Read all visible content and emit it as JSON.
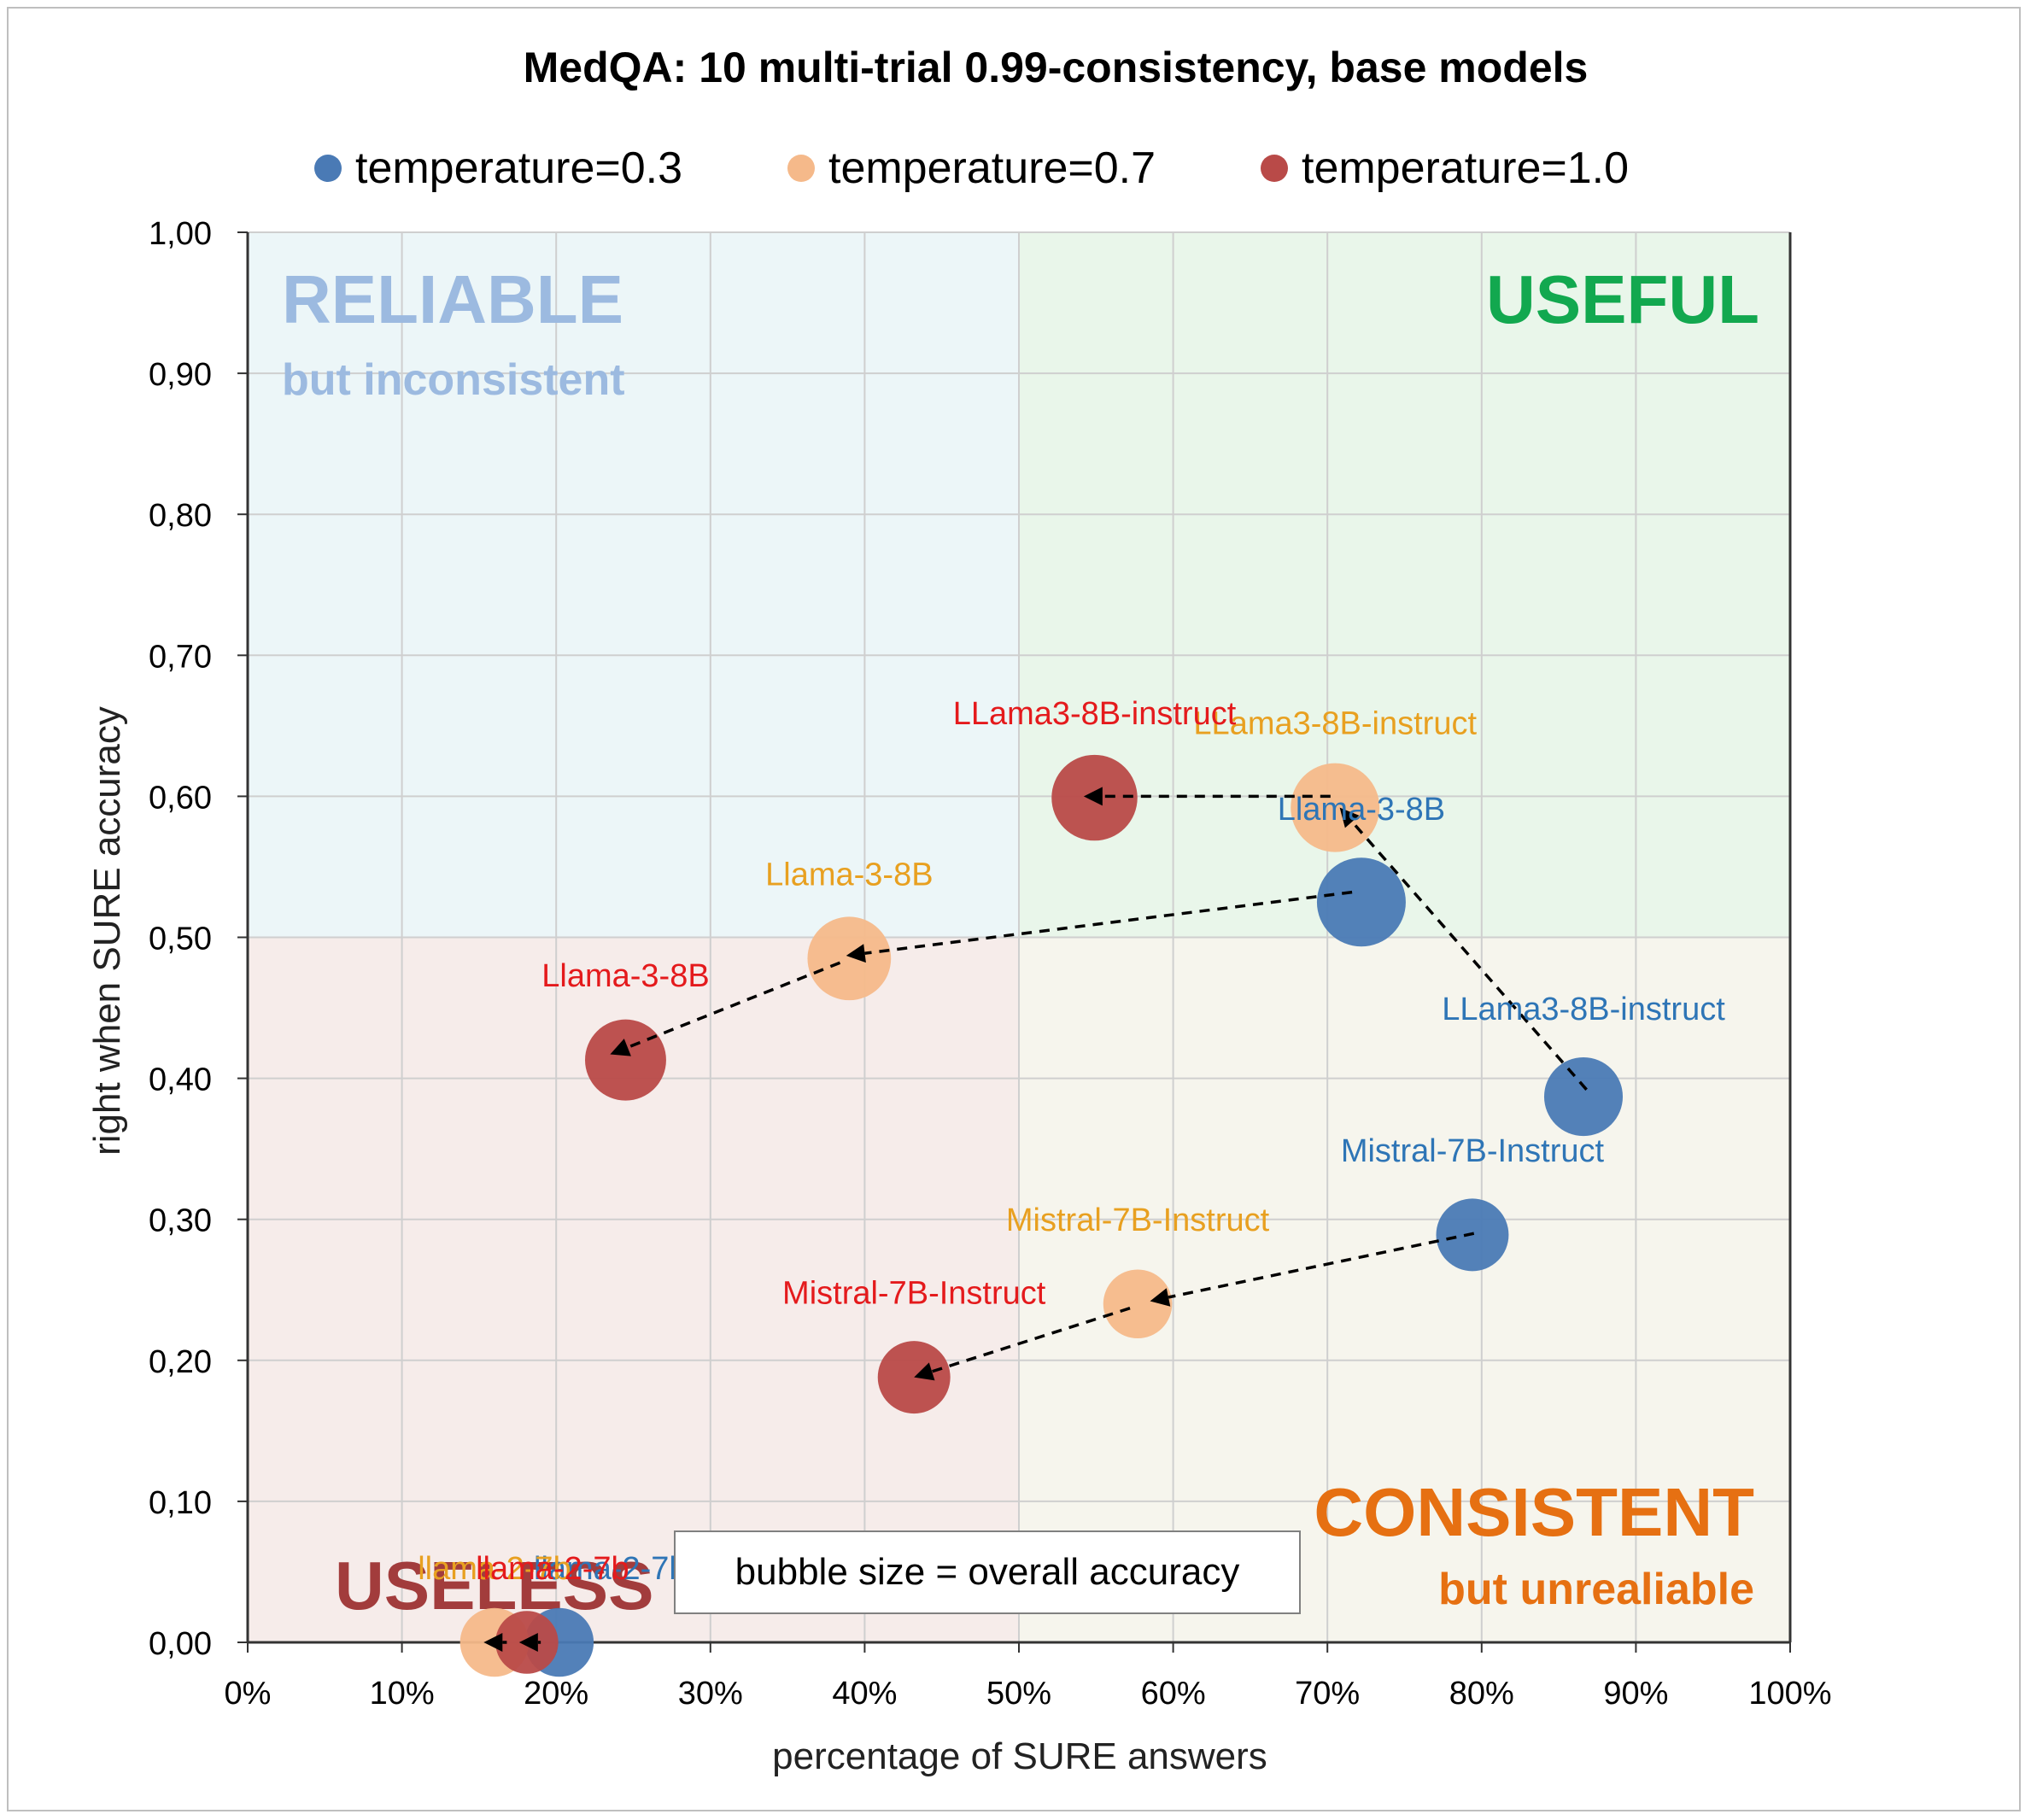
{
  "chart_data": {
    "type": "scatter",
    "title": "MedQA: 10 multi-trial 0.99-consistency, base models",
    "xlabel": "percentage of SURE answers",
    "ylabel": "right when SURE accuracy",
    "xlim": [
      0,
      1.0
    ],
    "ylim": [
      0,
      1.0
    ],
    "x_ticks": [
      0,
      0.1,
      0.2,
      0.3,
      0.4,
      0.5,
      0.6,
      0.7,
      0.8,
      0.9,
      1.0
    ],
    "y_ticks": [
      0,
      0.1,
      0.2,
      0.3,
      0.4,
      0.5,
      0.6,
      0.7,
      0.8,
      0.9,
      1.0
    ],
    "x_tick_labels": [
      "0%",
      "10%",
      "20%",
      "30%",
      "40%",
      "50%",
      "60%",
      "70%",
      "80%",
      "90%",
      "100%"
    ],
    "y_tick_labels": [
      "0,00",
      "0,10",
      "0,20",
      "0,30",
      "0,40",
      "0,50",
      "0,60",
      "0,70",
      "0,80",
      "0,90",
      "1,00"
    ],
    "grid": true,
    "legend_position": "top",
    "series": [
      {
        "name": "temperature=0.3",
        "color": "#4a7ab5",
        "label_color": "#2e75b6",
        "points": [
          {
            "label": "Llama-3-8B",
            "x": 0.722,
            "y": 0.525,
            "size": 0.6
          },
          {
            "label": "LLama3-8B-instruct",
            "x": 0.866,
            "y": 0.387,
            "size": 0.47
          },
          {
            "label": "Mistral-7B-Instruct",
            "x": 0.794,
            "y": 0.289,
            "size": 0.4
          },
          {
            "label": "llama-2-7b",
            "x": 0.202,
            "y": 0.0,
            "size": 0.36
          }
        ]
      },
      {
        "name": "temperature=0.7",
        "color": "#f5b98a",
        "label_color": "#e8a020",
        "points": [
          {
            "label": "LLama3-8B-instruct",
            "x": 0.705,
            "y": 0.592,
            "size": 0.6
          },
          {
            "label": "Llama-3-8B",
            "x": 0.39,
            "y": 0.485,
            "size": 0.53
          },
          {
            "label": "Mistral-7B-Instruct",
            "x": 0.577,
            "y": 0.24,
            "size": 0.36
          },
          {
            "label": "llama-2-7b",
            "x": 0.16,
            "y": 0.0,
            "size": 0.36
          }
        ]
      },
      {
        "name": "temperature=1.0",
        "color": "#b94a48",
        "label_color": "#e41a1c",
        "points": [
          {
            "label": "LLama3-8B-instruct",
            "x": 0.549,
            "y": 0.599,
            "size": 0.56
          },
          {
            "label": "Llama-3-8B",
            "x": 0.245,
            "y": 0.413,
            "size": 0.5
          },
          {
            "label": "Mistral-7B-Instruct",
            "x": 0.432,
            "y": 0.188,
            "size": 0.4
          },
          {
            "label": "llama-2-7b",
            "x": 0.181,
            "y": 0.0,
            "size": 0.3
          }
        ]
      }
    ],
    "arrows": [
      {
        "from": [
          0.868,
          0.392
        ],
        "to": [
          0.708,
          0.592
        ]
      },
      {
        "from": [
          0.702,
          0.6
        ],
        "to": [
          0.542,
          0.6
        ]
      },
      {
        "from": [
          0.716,
          0.532
        ],
        "to": [
          0.388,
          0.487
        ]
      },
      {
        "from": [
          0.384,
          0.482
        ],
        "to": [
          0.235,
          0.417
        ]
      },
      {
        "from": [
          0.795,
          0.29
        ],
        "to": [
          0.585,
          0.242
        ]
      },
      {
        "from": [
          0.572,
          0.237
        ],
        "to": [
          0.432,
          0.188
        ]
      },
      {
        "from": [
          0.19,
          0.0
        ],
        "to": [
          0.176,
          0.0
        ]
      },
      {
        "from": [
          0.168,
          0.0
        ],
        "to": [
          0.153,
          0.0
        ]
      }
    ],
    "quadrants": [
      {
        "name": "reliable",
        "title": "RELIABLE",
        "subtitle": "but inconsistent",
        "fill": "#ecf6f8",
        "title_color": "#9cbae0"
      },
      {
        "name": "useful",
        "title": "USEFUL",
        "subtitle": "",
        "fill": "#e9f6ea",
        "title_color": "#12a84f"
      },
      {
        "name": "useless",
        "title": "USELESS",
        "subtitle": "",
        "fill": "#f6ecea",
        "title_color": "#a23c3c"
      },
      {
        "name": "consistent",
        "title": "CONSISTENT",
        "subtitle": "but unrealiable",
        "fill": "#f6f5ed",
        "title_color": "#e67012"
      }
    ],
    "annotation": "bubble size = overall accuracy"
  }
}
